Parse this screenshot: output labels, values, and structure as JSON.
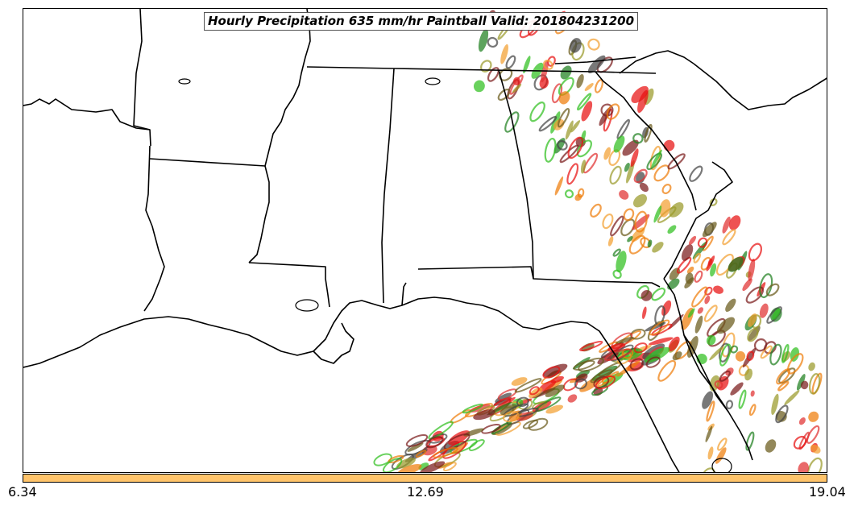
{
  "title": "Hourly Precipitation 635 mm/hr Paintball Valid: 201804231200",
  "colorbar": {
    "color": "#ffc46b",
    "ticks": [
      "6.34",
      "12.69",
      "19.04"
    ]
  },
  "map_data": {
    "type": "paintball",
    "region": "Southeastern United States",
    "member_colors": [
      "#e81010",
      "#ef7d0a",
      "#f2a030",
      "#2fbf1f",
      "#1f7f1f",
      "#7a1a1a",
      "#9a9a2a",
      "#444444",
      "#e03030",
      "#6a5a1a"
    ]
  }
}
